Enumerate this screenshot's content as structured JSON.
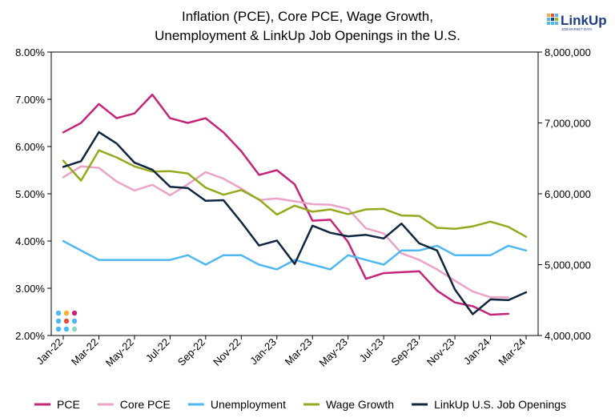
{
  "chart_data": {
    "type": "line",
    "title": [
      "Inflation (PCE), Core PCE, Wage Growth,",
      "Unemployment & LinkUp Job Openings in the U.S."
    ],
    "brand": {
      "name": "LinkUp",
      "tagline": "JOB MARKET DATA"
    },
    "x": [
      "Jan-22",
      "Feb-22",
      "Mar-22",
      "Apr-22",
      "May-22",
      "Jun-22",
      "Jul-22",
      "Aug-22",
      "Sep-22",
      "Oct-22",
      "Nov-22",
      "Dec-22",
      "Jan-23",
      "Feb-23",
      "Mar-23",
      "Apr-23",
      "May-23",
      "Jun-23",
      "Jul-23",
      "Aug-23",
      "Sep-23",
      "Oct-23",
      "Nov-23",
      "Dec-23",
      "Jan-24",
      "Feb-24",
      "Mar-24"
    ],
    "x_tick_labels": [
      "Jan-22",
      "Mar-22",
      "May-22",
      "Jul-22",
      "Sep-22",
      "Nov-22",
      "Jan-23",
      "Mar-23",
      "May-23",
      "Jul-23",
      "Sep-23",
      "Nov-23",
      "Jan-24",
      "Mar-24"
    ],
    "y_left": {
      "ticks": [
        "2.00%",
        "3.00%",
        "4.00%",
        "5.00%",
        "6.00%",
        "7.00%",
        "8.00%"
      ],
      "range": [
        2.0,
        8.0
      ]
    },
    "y_right": {
      "ticks": [
        "4,000,000",
        "5,000,000",
        "6,000,000",
        "7,000,000",
        "8,000,000"
      ],
      "range": [
        4000000,
        8000000
      ]
    },
    "grid": false,
    "legend_position": "bottom",
    "series": [
      {
        "name": "PCE",
        "color": "#c6247b",
        "axis": "left",
        "values": [
          6.3,
          6.5,
          6.9,
          6.6,
          6.7,
          7.1,
          6.6,
          6.5,
          6.6,
          6.3,
          5.9,
          5.4,
          5.5,
          5.2,
          4.43,
          4.45,
          3.98,
          3.2,
          3.32,
          3.34,
          3.36,
          2.95,
          2.7,
          2.62,
          2.44,
          2.46,
          null
        ]
      },
      {
        "name": "Core PCE",
        "color": "#eba3c8",
        "axis": "left",
        "values": [
          5.35,
          5.58,
          5.55,
          5.26,
          5.07,
          5.19,
          4.97,
          5.2,
          5.46,
          5.32,
          5.11,
          4.87,
          4.9,
          4.84,
          4.78,
          4.77,
          4.68,
          4.27,
          4.16,
          3.74,
          3.6,
          3.4,
          3.16,
          2.93,
          2.81,
          2.81,
          null
        ]
      },
      {
        "name": "Unemployment",
        "color": "#4db8f2",
        "axis": "left",
        "values": [
          4.0,
          3.8,
          3.6,
          3.6,
          3.6,
          3.6,
          3.6,
          3.7,
          3.5,
          3.7,
          3.7,
          3.5,
          3.4,
          3.6,
          3.5,
          3.4,
          3.7,
          3.6,
          3.5,
          3.8,
          3.8,
          3.9,
          3.7,
          3.7,
          3.7,
          3.9,
          3.8
        ]
      },
      {
        "name": "Wage Growth",
        "color": "#94aa1c",
        "axis": "left",
        "values": [
          5.7,
          5.28,
          5.92,
          5.77,
          5.58,
          5.47,
          5.48,
          5.43,
          5.13,
          4.98,
          5.08,
          4.88,
          4.56,
          4.75,
          4.62,
          4.67,
          4.57,
          4.67,
          4.68,
          4.54,
          4.53,
          4.28,
          4.26,
          4.31,
          4.41,
          4.3,
          4.09
        ]
      },
      {
        "name": "LinkUp U.S. Job Openings",
        "color": "#0f2540",
        "axis": "right",
        "values": [
          6380000,
          6460000,
          6870000,
          6710000,
          6440000,
          6340000,
          6100000,
          6080000,
          5900000,
          5910000,
          5600000,
          5270000,
          5340000,
          5010000,
          5550000,
          5450000,
          5400000,
          5420000,
          5370000,
          5580000,
          5300000,
          5200000,
          4650000,
          4300000,
          4510000,
          4500000,
          4610000
        ]
      }
    ]
  }
}
